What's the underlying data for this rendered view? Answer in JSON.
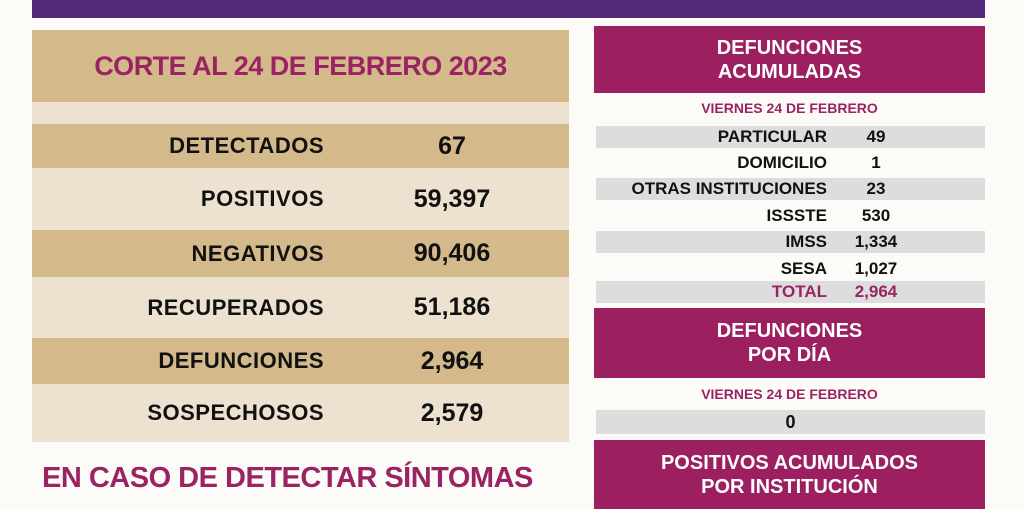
{
  "colors": {
    "purple_bar": "#552a7c",
    "magenta": "#9c1f5f",
    "tan": "#d4b98a",
    "light_tan": "#ede2cf",
    "gray": "#dedddd"
  },
  "left": {
    "title": "CORTE AL 24 DE FEBRERO 2023",
    "rows": [
      {
        "label": "DETECTADOS",
        "value": "67"
      },
      {
        "label": "POSITIVOS",
        "value": "59,397"
      },
      {
        "label": "NEGATIVOS",
        "value": "90,406"
      },
      {
        "label": "RECUPERADOS",
        "value": "51,186"
      },
      {
        "label": "DEFUNCIONES",
        "value": "2,964"
      },
      {
        "label": "SOSPECHOSOS",
        "value": "2,579"
      }
    ],
    "footer": "EN CASO DE DETECTAR SÍNTOMAS"
  },
  "right": {
    "defunciones_acumuladas": {
      "title_line1": "DEFUNCIONES",
      "title_line2": "ACUMULADAS",
      "date": "VIERNES 24 DE FEBRERO",
      "rows": [
        {
          "label": "PARTICULAR",
          "value": "49"
        },
        {
          "label": "DOMICILIO",
          "value": "1"
        },
        {
          "label": "OTRAS INSTITUCIONES",
          "value": "23"
        },
        {
          "label": "ISSSTE",
          "value": "530"
        },
        {
          "label": "IMSS",
          "value": "1,334"
        },
        {
          "label": "SESA",
          "value": "1,027"
        },
        {
          "label": "TOTAL",
          "value": "2,964"
        }
      ]
    },
    "defunciones_por_dia": {
      "title_line1": "DEFUNCIONES",
      "title_line2": "POR DÍA",
      "date": "VIERNES 24 DE FEBRERO",
      "value": "0"
    },
    "positivos_acumulados": {
      "title_line1": "POSITIVOS ACUMULADOS",
      "title_line2": "POR INSTITUCIÓN"
    }
  }
}
